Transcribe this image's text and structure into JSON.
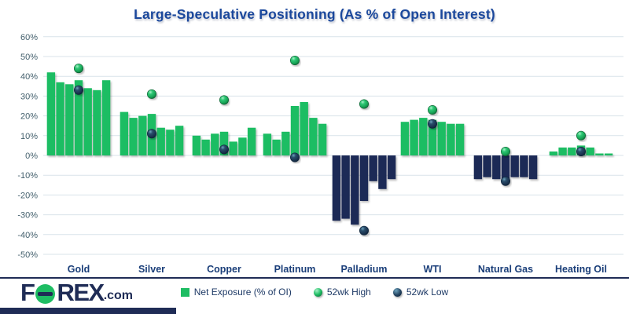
{
  "title": "Large-Speculative Positioning (As % of Open Interest)",
  "colors": {
    "bar_positive": "#1ebd63",
    "bar_negative": "#1f2c56",
    "high_dot": "#1ebd63",
    "low_dot": "#16314d",
    "title": "#1b489c",
    "category_label": "#1a3e79",
    "tick_label": "#44606d",
    "gridline": "#d9e3ea",
    "divider": "#1f2c56"
  },
  "chart_data": {
    "type": "bar",
    "title": "Large-Speculative Positioning (As % of Open Interest)",
    "xlabel": "",
    "ylabel": "",
    "ylim": [
      -50,
      60
    ],
    "ytick_step": 10,
    "ytick_labels": [
      "60%",
      "50%",
      "40%",
      "30%",
      "20%",
      "10%",
      "0%",
      "-10%",
      "-20%",
      "-30%",
      "-40%",
      "-50%"
    ],
    "grid": true,
    "legend_position": "bottom",
    "categories": [
      "Gold",
      "Silver",
      "Copper",
      "Platinum",
      "Palladium",
      "WTI",
      "Natural Gas",
      "Heating Oil"
    ],
    "bars_per_category": 7,
    "series": [
      {
        "name": "Net Exposure (% of OI)",
        "type": "bar",
        "values": [
          [
            42,
            37,
            36,
            38,
            34,
            33,
            38
          ],
          [
            22,
            19,
            20,
            21,
            14,
            13,
            15
          ],
          [
            10,
            8,
            11,
            12,
            7,
            9,
            14
          ],
          [
            11,
            8,
            12,
            25,
            27,
            19,
            16
          ],
          [
            -33,
            -32,
            -35,
            -23,
            -13,
            -17,
            -12
          ],
          [
            17,
            18,
            19,
            18,
            17,
            16,
            16
          ],
          [
            -12,
            -11,
            -12,
            -12,
            -11,
            -11,
            -12
          ],
          [
            2,
            4,
            4,
            5,
            4,
            1,
            1
          ]
        ]
      },
      {
        "name": "52wk High",
        "type": "point",
        "values": [
          44,
          31,
          28,
          48,
          26,
          23,
          2,
          10
        ]
      },
      {
        "name": "52wk Low",
        "type": "point",
        "values": [
          33,
          11,
          3,
          -1,
          -38,
          16,
          -13,
          2
        ]
      }
    ]
  },
  "footer": {
    "logo": {
      "part1": "F",
      "part3": "REX",
      "suffix": ".com"
    },
    "legend": [
      {
        "marker": "square",
        "label": "Net Exposure (% of OI)"
      },
      {
        "marker": "dot-high",
        "label": "52wk High"
      },
      {
        "marker": "dot-low",
        "label": "52wk Low"
      }
    ]
  }
}
